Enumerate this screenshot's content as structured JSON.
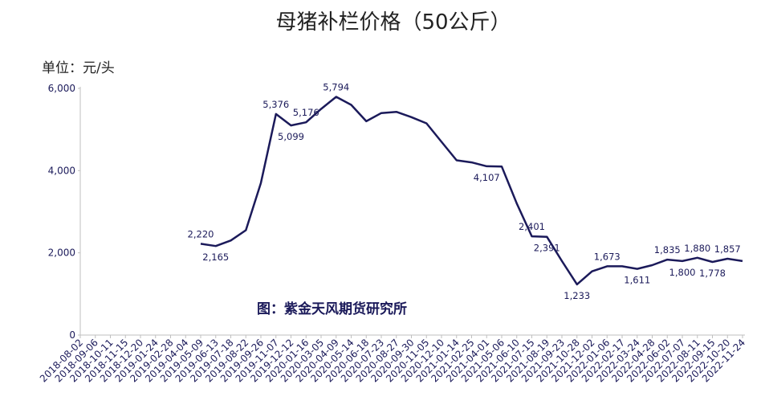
{
  "chart_data": {
    "type": "line",
    "title": "母猪补栏价格（50公斤）",
    "y_unit": "单位：元/头",
    "source": "图：紫金天风期货研究所",
    "categories": [
      "2018-08-02",
      "2018-09-06",
      "2018-10-11",
      "2018-11-15",
      "2018-12-20",
      "2019-01-24",
      "2019-02-28",
      "2019-04-04",
      "2019-05-09",
      "2019-06-13",
      "2019-07-18",
      "2019-08-22",
      "2019-09-26",
      "2019-11-07",
      "2019-12-12",
      "2020-01-16",
      "2020-03-05",
      "2020-04-09",
      "2020-05-14",
      "2020-06-18",
      "2020-07-23",
      "2020-08-27",
      "2020-09-30",
      "2020-11-05",
      "2020-12-10",
      "2021-01-14",
      "2021-02-25",
      "2021-04-01",
      "2021-05-06",
      "2021-06-10",
      "2021-07-15",
      "2021-08-19",
      "2021-09-23",
      "2021-10-28",
      "2021-12-02",
      "2022-01-06",
      "2022-02-17",
      "2022-03-24",
      "2022-04-28",
      "2022-06-02",
      "2022-07-07",
      "2022-08-11",
      "2022-09-15",
      "2022-10-20",
      "2022-11-24"
    ],
    "values": [
      null,
      null,
      null,
      null,
      null,
      null,
      null,
      null,
      2220,
      2165,
      2300,
      2550,
      3700,
      5376,
      5099,
      5176,
      5500,
      5794,
      5600,
      5200,
      5400,
      5430,
      5300,
      5150,
      4700,
      4250,
      4200,
      4107,
      4100,
      3200,
      2401,
      2391,
      1800,
      1233,
      1550,
      1673,
      1673,
      1611,
      1700,
      1835,
      1800,
      1880,
      1778,
      1857,
      1800
    ],
    "value_labels": [
      null,
      null,
      null,
      null,
      null,
      null,
      null,
      null,
      "2,220",
      "2,165",
      null,
      null,
      null,
      "5,376",
      "5,099",
      "5,176",
      null,
      "5,794",
      null,
      null,
      null,
      null,
      null,
      null,
      null,
      null,
      null,
      "4,107",
      null,
      null,
      "2,401",
      "2,391",
      null,
      "1,233",
      null,
      "1,673",
      null,
      "1,611",
      null,
      "1,835",
      "1,800",
      "1,880",
      "1,778",
      "1,857",
      null
    ],
    "color": "#1b1a5a",
    "ylim": [
      0,
      6000
    ],
    "yticks": [
      0,
      {
        "value": 2000,
        "label": "2,000"
      },
      {
        "value": 4000,
        "label": "4,000"
      },
      {
        "value": 6000,
        "label": "6,000"
      }
    ]
  }
}
